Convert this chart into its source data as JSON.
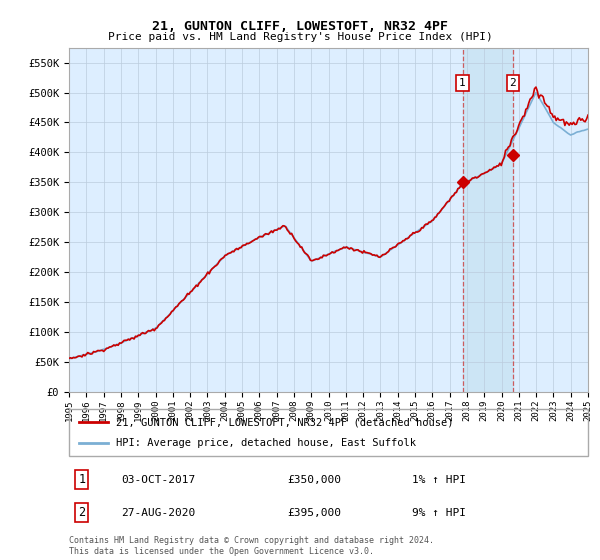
{
  "title": "21, GUNTON CLIFF, LOWESTOFT, NR32 4PF",
  "subtitle": "Price paid vs. HM Land Registry's House Price Index (HPI)",
  "ylim": [
    0,
    575000
  ],
  "ytick_values": [
    0,
    50000,
    100000,
    150000,
    200000,
    250000,
    300000,
    350000,
    400000,
    450000,
    500000,
    550000
  ],
  "x_start_year": 1995,
  "x_end_year": 2025,
  "sale1_date": 2017.75,
  "sale1_price": 350000,
  "sale2_date": 2020.65,
  "sale2_price": 395000,
  "sale1_label": "1",
  "sale2_label": "2",
  "line_color_red": "#cc0000",
  "line_color_blue": "#7bafd4",
  "bg_color": "#ddeeff",
  "highlight_color": "#cce5f5",
  "grid_color": "#bbccdd",
  "legend_line1": "21, GUNTON CLIFF, LOWESTOFT, NR32 4PF (detached house)",
  "legend_line2": "HPI: Average price, detached house, East Suffolk",
  "note1_label": "1",
  "note1_date": "03-OCT-2017",
  "note1_price": "£350,000",
  "note1_hpi": "1% ↑ HPI",
  "note2_label": "2",
  "note2_date": "27-AUG-2020",
  "note2_price": "£395,000",
  "note2_hpi": "9% ↑ HPI",
  "footer": "Contains HM Land Registry data © Crown copyright and database right 2024.\nThis data is licensed under the Open Government Licence v3.0."
}
